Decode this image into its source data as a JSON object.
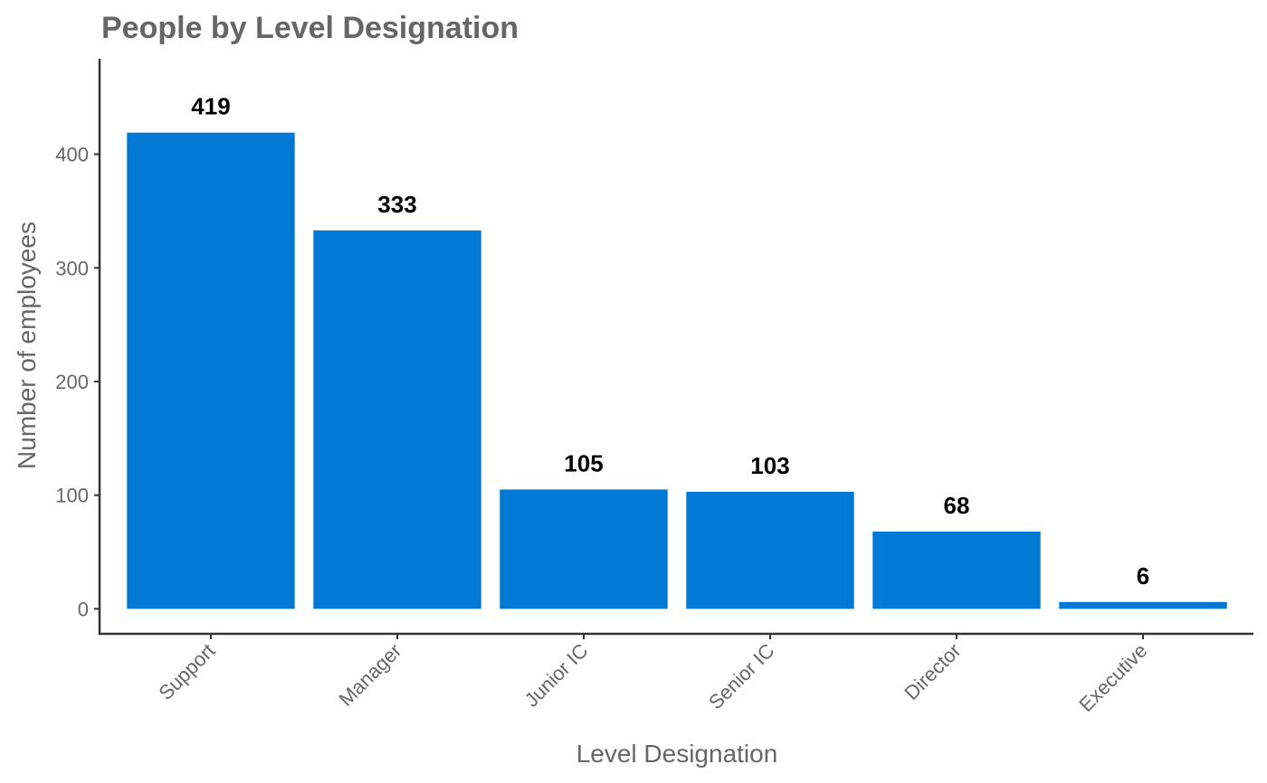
{
  "chart_data": {
    "type": "bar",
    "title": "People by Level Designation",
    "xlabel": "Level Designation",
    "ylabel": "Number of employees",
    "categories": [
      "Support",
      "Manager",
      "Junior IC",
      "Senior IC",
      "Director",
      "Executive"
    ],
    "values": [
      419,
      333,
      105,
      103,
      68,
      6
    ],
    "data_labels": [
      "419",
      "333",
      "105",
      "103",
      "68",
      "6"
    ],
    "yticks": [
      0,
      100,
      200,
      300,
      400
    ],
    "ytick_labels": [
      "0",
      "100",
      "200",
      "300",
      "400"
    ],
    "ylim": [
      -22,
      484
    ],
    "grid": false,
    "legend": "none",
    "bar_color": "#0078D4",
    "axis_color": "#333333",
    "text_color": "#666666",
    "label_color": "#000000"
  }
}
